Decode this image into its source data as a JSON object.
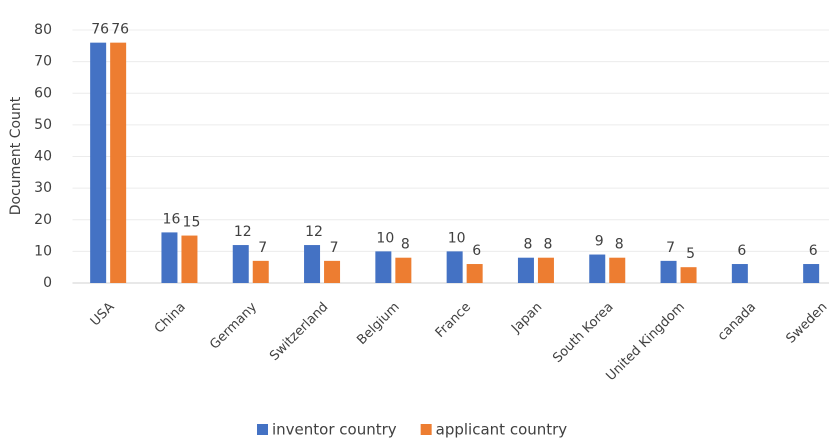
{
  "chart_data": {
    "type": "bar",
    "y_label": "Document Count",
    "categories": [
      "USA",
      "China",
      "Germany",
      "Switzerland",
      "Belgium",
      "France",
      "Japan",
      "South Korea",
      "United Kingdom",
      "canada",
      "Sweden"
    ],
    "series": [
      {
        "name": "inventor country",
        "color": "#4472c4",
        "values": [
          76,
          16,
          12,
          12,
          10,
          10,
          8,
          9,
          7,
          6,
          6
        ]
      },
      {
        "name": "applicant country",
        "color": "#ed7d31",
        "values": [
          76,
          15,
          7,
          7,
          8,
          6,
          8,
          8,
          5,
          null,
          null
        ]
      }
    ],
    "ylim": [
      0,
      80
    ],
    "yticks": [
      0,
      10,
      20,
      30,
      40,
      50,
      60,
      70,
      80
    ],
    "grid": true,
    "legend": "bottom"
  }
}
